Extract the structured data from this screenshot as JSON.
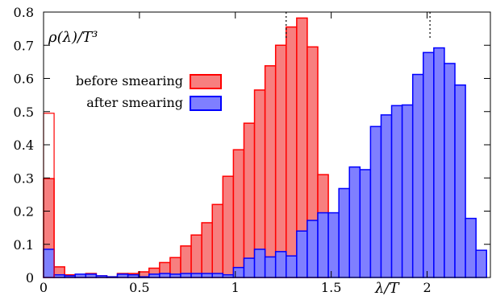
{
  "chart_data": {
    "type": "bar",
    "ylabel": "ρ(λ)/T³",
    "xlabel": "λ/T",
    "xlim": [
      0,
      2.33
    ],
    "ylim": [
      0,
      0.8
    ],
    "xticks": [
      {
        "value": 0,
        "label": "0"
      },
      {
        "value": 0.5,
        "label": "0.5"
      },
      {
        "value": 1,
        "label": "1"
      },
      {
        "value": 1.5,
        "label": "1.5"
      },
      {
        "value": 2,
        "label": "2"
      }
    ],
    "yticks": [
      {
        "value": 0,
        "label": "0"
      },
      {
        "value": 0.1,
        "label": "0.1"
      },
      {
        "value": 0.2,
        "label": "0.2"
      },
      {
        "value": 0.3,
        "label": "0.3"
      },
      {
        "value": 0.4,
        "label": "0.4"
      },
      {
        "value": 0.5,
        "label": "0.5"
      },
      {
        "value": 0.6,
        "label": "0.6"
      },
      {
        "value": 0.7,
        "label": "0.7"
      },
      {
        "value": 0.8,
        "label": "0.8"
      }
    ],
    "bin_width": 0.055,
    "zero_mode_bar": {
      "x0": 0,
      "x1": 0.055,
      "value": 0.495,
      "color": "#ff0000"
    },
    "legend_position": "middle-left",
    "series": [
      {
        "name": "before smearing",
        "fill": "#f77f7f",
        "stroke": "#ff0000",
        "bin_starts": [
          0,
          0.055,
          0.11,
          0.165,
          0.22,
          0.275,
          0.33,
          0.385,
          0.44,
          0.495,
          0.55,
          0.605,
          0.66,
          0.715,
          0.77,
          0.825,
          0.88,
          0.935,
          0.99,
          1.045,
          1.1,
          1.155,
          1.21,
          1.265,
          1.32,
          1.375,
          1.43
        ],
        "values": [
          0.298,
          0.032,
          0.008,
          0.008,
          0.012,
          0.005,
          0.002,
          0.012,
          0.012,
          0.017,
          0.028,
          0.045,
          0.06,
          0.095,
          0.128,
          0.165,
          0.22,
          0.305,
          0.385,
          0.465,
          0.565,
          0.638,
          0.7,
          0.755,
          0.782,
          0.695,
          0.31
        ]
      },
      {
        "name": "after smearing",
        "fill": "#7f7fff",
        "stroke": "#0000ff",
        "bin_starts": [
          0,
          0.055,
          0.11,
          0.165,
          0.22,
          0.275,
          0.33,
          0.385,
          0.44,
          0.495,
          0.55,
          0.605,
          0.66,
          0.715,
          0.77,
          0.825,
          0.88,
          0.935,
          0.99,
          1.045,
          1.1,
          1.155,
          1.21,
          1.265,
          1.32,
          1.375,
          1.43,
          1.485,
          1.54,
          1.595,
          1.65,
          1.705,
          1.76,
          1.815,
          1.87,
          1.925,
          1.98,
          2.035,
          2.09,
          2.145,
          2.2,
          2.255
        ],
        "values": [
          0.085,
          0.008,
          0.005,
          0.01,
          0.01,
          0.005,
          0.002,
          0.01,
          0.008,
          0.002,
          0.01,
          0.012,
          0.01,
          0.012,
          0.012,
          0.012,
          0.012,
          0.008,
          0.03,
          0.058,
          0.085,
          0.062,
          0.078,
          0.065,
          0.14,
          0.172,
          0.195,
          0.195,
          0.268,
          0.333,
          0.325,
          0.455,
          0.49,
          0.518,
          0.52,
          0.612,
          0.678,
          0.692,
          0.645,
          0.58,
          0.178,
          0.082
        ]
      }
    ],
    "reference_lines": [
      {
        "x": 1.265,
        "style": "dotted"
      },
      {
        "x": 2.015,
        "style": "dotted"
      }
    ]
  }
}
